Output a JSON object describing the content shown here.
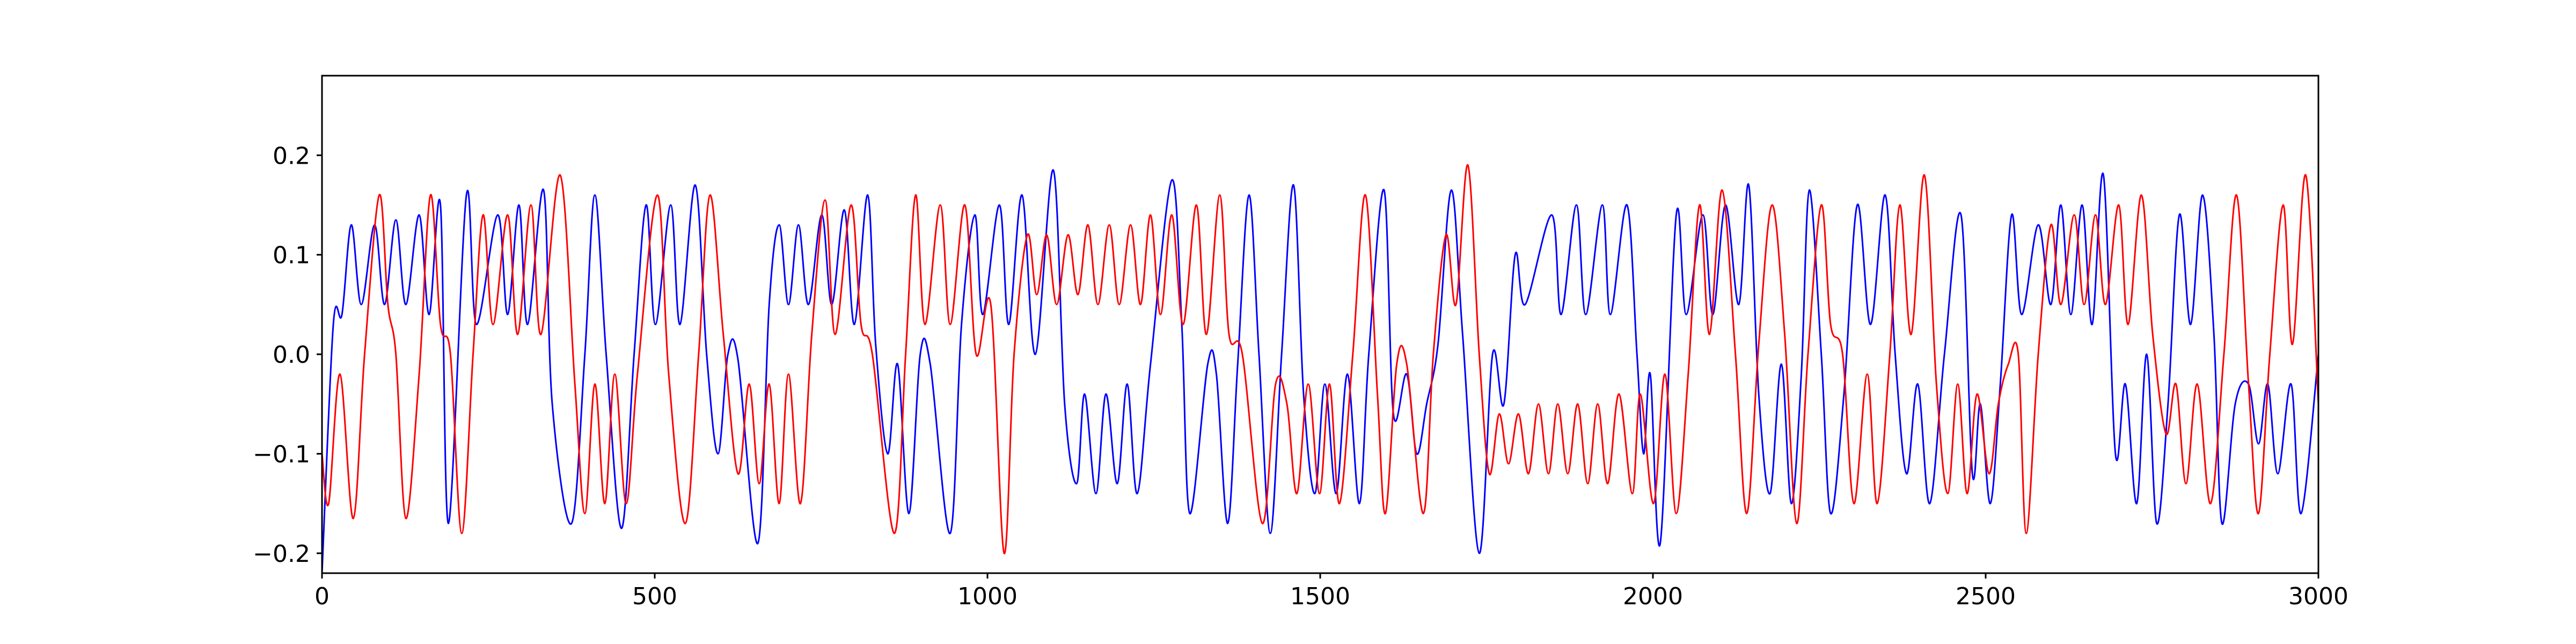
{
  "chart_data": {
    "type": "line",
    "xlim": [
      0,
      3000
    ],
    "xticks": [
      0,
      500,
      1000,
      1500,
      2000,
      2500,
      3000
    ],
    "ylim": [
      -0.22,
      0.28
    ],
    "yticks": [
      {
        "value": -0.2,
        "label": "−0.2"
      },
      {
        "value": -0.1,
        "label": "−0.1"
      },
      {
        "value": 0.0,
        "label": "0.0"
      },
      0.1,
      0.2
    ],
    "grid": false,
    "series": [
      {
        "color": "#0000ff",
        "x": [
          0,
          17,
          30,
          44,
          59,
          79,
          94,
          111,
          126,
          146,
          161,
          178,
          190,
          217,
          232,
          264,
          279,
          296,
          309,
          333,
          346,
          375,
          395,
          410,
          427,
          450,
          469,
          487,
          501,
          524,
          538,
          561,
          578,
          595,
          610,
          625,
          655,
          672,
          687,
          701,
          716,
          731,
          751,
          766,
          785,
          800,
          820,
          832,
          850,
          865,
          882,
          899,
          914,
          944,
          961,
          981,
          993,
          1018,
          1032,
          1052,
          1072,
          1099,
          1116,
          1134,
          1146,
          1163,
          1178,
          1195,
          1210,
          1225,
          1245,
          1277,
          1292,
          1304,
          1331,
          1344,
          1361,
          1376,
          1393,
          1408,
          1425,
          1442,
          1460,
          1475,
          1492,
          1507,
          1524,
          1541,
          1559,
          1573,
          1596,
          1610,
          1630,
          1645,
          1660,
          1677,
          1697,
          1714,
          1739,
          1759,
          1776,
          1793,
          1808,
          1848,
          1862,
          1885,
          1899,
          1924,
          1936,
          1961,
          1976,
          1986,
          1996,
          2011,
          2035,
          2050,
          2075,
          2090,
          2109,
          2129,
          2144,
          2159,
          2176,
          2193,
          2208,
          2223,
          2235,
          2253,
          2267,
          2287,
          2307,
          2327,
          2349,
          2364,
          2381,
          2398,
          2416,
          2438,
          2463,
          2480,
          2492,
          2507,
          2522,
          2539,
          2554,
          2579,
          2598,
          2613,
          2628,
          2645,
          2660,
          2677,
          2695,
          2710,
          2727,
          2742,
          2757,
          2774,
          2791,
          2808,
          2826,
          2843,
          2855,
          2875,
          2895,
          2910,
          2924,
          2939,
          2959,
          2974,
          3000
        ],
        "values": [
          -0.22,
          0.03,
          0.04,
          0.13,
          0.05,
          0.13,
          0.05,
          0.135,
          0.05,
          0.14,
          0.04,
          0.15,
          -0.17,
          0.16,
          0.03,
          0.14,
          0.04,
          0.15,
          0.03,
          0.165,
          -0.05,
          -0.17,
          0.0,
          0.16,
          0.0,
          -0.175,
          0.0,
          0.15,
          0.03,
          0.15,
          0.03,
          0.17,
          0.0,
          -0.1,
          0.0,
          -0.005,
          -0.19,
          0.05,
          0.13,
          0.05,
          0.13,
          0.05,
          0.14,
          0.05,
          0.145,
          0.03,
          0.16,
          0.01,
          -0.1,
          -0.01,
          -0.16,
          0.0,
          -0.01,
          -0.18,
          0.03,
          0.14,
          0.04,
          0.15,
          0.03,
          0.16,
          0.0,
          0.185,
          -0.05,
          -0.13,
          -0.04,
          -0.14,
          -0.04,
          -0.13,
          -0.03,
          -0.14,
          -0.01,
          0.175,
          0.03,
          -0.16,
          -0.01,
          -0.02,
          -0.17,
          -0.01,
          0.16,
          0.0,
          -0.18,
          0.0,
          0.17,
          -0.04,
          -0.14,
          -0.03,
          -0.14,
          -0.02,
          -0.15,
          0.0,
          0.165,
          -0.06,
          -0.02,
          -0.1,
          -0.05,
          0.01,
          0.165,
          0.02,
          -0.2,
          0.0,
          -0.05,
          0.1,
          0.05,
          0.14,
          0.04,
          0.15,
          0.04,
          0.15,
          0.04,
          0.15,
          0.0,
          -0.1,
          -0.02,
          -0.19,
          0.14,
          0.04,
          0.14,
          0.04,
          0.15,
          0.05,
          0.17,
          -0.04,
          -0.14,
          -0.01,
          -0.15,
          -0.02,
          0.165,
          0.0,
          -0.16,
          -0.04,
          0.15,
          0.03,
          0.16,
          0.0,
          -0.12,
          -0.03,
          -0.15,
          0.0,
          0.14,
          -0.12,
          -0.05,
          -0.15,
          -0.03,
          0.14,
          0.04,
          0.13,
          0.05,
          0.15,
          0.04,
          0.15,
          0.03,
          0.18,
          -0.1,
          -0.03,
          -0.15,
          0.0,
          -0.17,
          -0.05,
          0.14,
          0.03,
          0.16,
          0.02,
          -0.17,
          -0.05,
          -0.03,
          -0.09,
          -0.03,
          -0.12,
          -0.03,
          -0.16,
          0.0
        ]
      },
      {
        "color": "#ff0000",
        "x": [
          0,
          10,
          27,
          47,
          64,
          86,
          99,
          111,
          126,
          146,
          163,
          178,
          193,
          210,
          227,
          242,
          257,
          279,
          294,
          314,
          329,
          358,
          380,
          395,
          410,
          425,
          440,
          457,
          474,
          504,
          521,
          546,
          566,
          583,
          603,
          625,
          642,
          657,
          672,
          687,
          701,
          719,
          736,
          756,
          771,
          795,
          810,
          827,
          860,
          877,
          892,
          906,
          929,
          944,
          966,
          983,
          1005,
          1025,
          1040,
          1060,
          1074,
          1089,
          1104,
          1121,
          1136,
          1151,
          1166,
          1183,
          1198,
          1215,
          1230,
          1245,
          1260,
          1277,
          1294,
          1314,
          1329,
          1349,
          1363,
          1383,
          1413,
          1433,
          1450,
          1465,
          1482,
          1499,
          1514,
          1529,
          1549,
          1568,
          1586,
          1598,
          1615,
          1630,
          1655,
          1670,
          1689,
          1704,
          1722,
          1739,
          1754,
          1769,
          1783,
          1798,
          1813,
          1828,
          1843,
          1857,
          1872,
          1887,
          1902,
          1917,
          1932,
          1949,
          1969,
          1981,
          2001,
          2018,
          2035,
          2053,
          2070,
          2085,
          2104,
          2124,
          2141,
          2159,
          2179,
          2198,
          2216,
          2233,
          2253,
          2267,
          2285,
          2302,
          2322,
          2337,
          2356,
          2371,
          2388,
          2408,
          2426,
          2443,
          2458,
          2472,
          2487,
          2505,
          2519,
          2534,
          2549,
          2561,
          2579,
          2598,
          2613,
          2633,
          2648,
          2665,
          2680,
          2700,
          2714,
          2734,
          2751,
          2771,
          2786,
          2801,
          2818,
          2838,
          2858,
          2877,
          2895,
          2910,
          2927,
          2947,
          2961,
          2981,
          3000
        ],
        "values": [
          -0.1,
          -0.15,
          -0.02,
          -0.165,
          0.0,
          0.16,
          0.05,
          0.0,
          -0.165,
          -0.02,
          0.16,
          0.03,
          0.0,
          -0.18,
          0.0,
          0.14,
          0.03,
          0.14,
          0.02,
          0.15,
          0.02,
          0.18,
          -0.03,
          -0.16,
          -0.03,
          -0.15,
          -0.02,
          -0.15,
          -0.02,
          0.16,
          -0.02,
          -0.17,
          0.0,
          0.16,
          0.02,
          -0.12,
          -0.03,
          -0.13,
          -0.03,
          -0.15,
          -0.02,
          -0.15,
          0.02,
          0.155,
          0.02,
          0.15,
          0.03,
          0.0,
          -0.18,
          0.0,
          0.16,
          0.03,
          0.15,
          0.03,
          0.15,
          0.0,
          0.05,
          -0.2,
          0.0,
          0.12,
          0.06,
          0.12,
          0.05,
          0.12,
          0.06,
          0.13,
          0.05,
          0.13,
          0.05,
          0.13,
          0.05,
          0.14,
          0.04,
          0.14,
          0.03,
          0.15,
          0.02,
          0.16,
          0.02,
          0.0,
          -0.17,
          -0.03,
          -0.05,
          -0.14,
          -0.03,
          -0.14,
          -0.03,
          -0.15,
          0.0,
          0.16,
          -0.04,
          -0.16,
          -0.01,
          -0.01,
          -0.16,
          0.0,
          0.12,
          0.05,
          0.19,
          0.0,
          -0.12,
          -0.06,
          -0.11,
          -0.06,
          -0.12,
          -0.05,
          -0.12,
          -0.05,
          -0.12,
          -0.05,
          -0.13,
          -0.05,
          -0.13,
          -0.04,
          -0.14,
          -0.04,
          -0.15,
          -0.02,
          -0.16,
          -0.02,
          0.15,
          0.02,
          0.165,
          0.0,
          -0.16,
          0.01,
          0.15,
          0.02,
          -0.17,
          0.0,
          0.15,
          0.03,
          0.0,
          -0.15,
          -0.02,
          -0.15,
          0.0,
          0.15,
          0.02,
          0.18,
          -0.03,
          -0.14,
          -0.03,
          -0.14,
          -0.04,
          -0.12,
          -0.05,
          -0.01,
          0.0,
          -0.18,
          0.0,
          0.13,
          0.05,
          0.14,
          0.05,
          0.14,
          0.05,
          0.15,
          0.03,
          0.16,
          0.02,
          -0.08,
          -0.03,
          -0.13,
          -0.03,
          -0.15,
          0.0,
          0.16,
          -0.03,
          -0.16,
          0.0,
          0.15,
          0.01,
          0.18,
          -0.05
        ]
      }
    ]
  }
}
